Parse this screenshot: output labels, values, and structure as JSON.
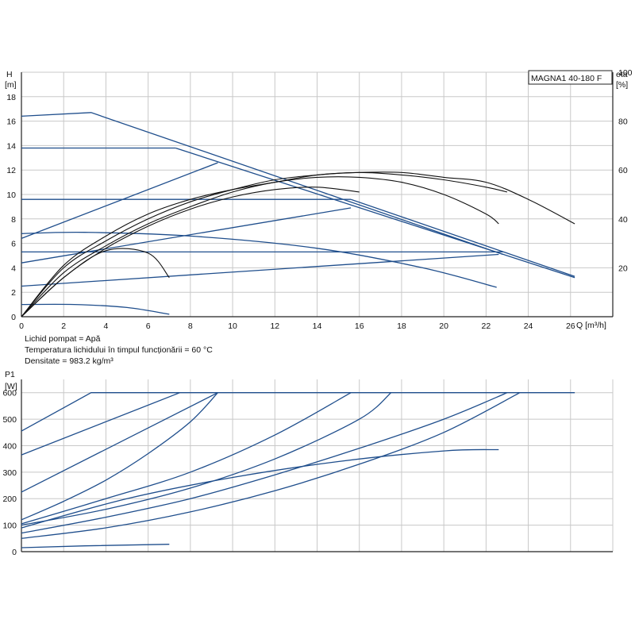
{
  "chart_data": [
    {
      "type": "line",
      "title": "MAGNA1 40-180 F",
      "ylabel_top": "H",
      "ylabel_unit": "[m]",
      "y2label_top": "eta",
      "y2label_unit": "[%]",
      "xlabel": "Q [m³/h]",
      "xlim": [
        0,
        28
      ],
      "ylim": [
        0,
        20
      ],
      "y2lim": [
        0,
        100
      ],
      "x_ticks": [
        0,
        2,
        4,
        6,
        8,
        10,
        12,
        14,
        16,
        18,
        20,
        22,
        24,
        26
      ],
      "y_ticks": [
        0,
        2,
        4,
        6,
        8,
        10,
        12,
        14,
        16,
        18
      ],
      "y2_ticks": [
        20,
        40,
        60,
        80,
        100
      ],
      "grid": true,
      "head_curves": [
        {
          "x": [
            0,
            3.3,
            22.8
          ],
          "y": [
            16.4,
            16.7,
            5.1
          ]
        },
        {
          "x": [
            0,
            7.3
          ],
          "y": [
            13.8,
            13.8
          ]
        },
        {
          "x": [
            0,
            15.6
          ],
          "y": [
            9.6,
            9.6
          ]
        },
        {
          "x": [
            0,
            22.8
          ],
          "y": [
            5.3,
            5.3
          ]
        },
        {
          "x": [
            0,
            3.0,
            8.0,
            14.0,
            19.0,
            22.5
          ],
          "y": [
            6.8,
            6.9,
            6.6,
            5.6,
            4.0,
            2.4
          ]
        },
        {
          "x": [
            0,
            2.5,
            5.0,
            7.0
          ],
          "y": [
            1.0,
            1.0,
            0.75,
            0.2
          ]
        },
        {
          "x": [
            0,
            9.3
          ],
          "y": [
            6.4,
            12.6
          ]
        },
        {
          "x": [
            0,
            15.6
          ],
          "y": [
            4.4,
            8.9
          ]
        },
        {
          "x": [
            0,
            22.6
          ],
          "y": [
            2.5,
            5.1
          ]
        },
        {
          "x": [
            7.3,
            26.2
          ],
          "y": [
            13.8,
            3.2
          ]
        },
        {
          "x": [
            15.6,
            26.2
          ],
          "y": [
            9.6,
            3.3
          ]
        }
      ],
      "efficiency_curves": [
        {
          "x": [
            0,
            2,
            4,
            6,
            8,
            10,
            12,
            14,
            16,
            18,
            20,
            22,
            24,
            26.2
          ],
          "y": [
            0,
            21,
            33,
            42,
            48,
            52,
            55,
            58,
            59,
            59,
            57,
            55,
            48,
            38
          ]
        },
        {
          "x": [
            0,
            2,
            4,
            6,
            8,
            10,
            12,
            14,
            16,
            18,
            20,
            22,
            23
          ],
          "y": [
            0,
            20,
            31,
            40,
            47,
            52,
            56,
            58,
            59,
            58,
            56,
            53,
            51
          ]
        },
        {
          "x": [
            0,
            2,
            4,
            6,
            8,
            10,
            12,
            14,
            16,
            18,
            20,
            22,
            22.6
          ],
          "y": [
            0,
            18,
            29,
            38,
            45,
            51,
            55,
            57,
            57,
            55,
            50,
            42,
            38
          ]
        },
        {
          "x": [
            0,
            2,
            4,
            6,
            8,
            10,
            12,
            14,
            16
          ],
          "y": [
            0,
            16,
            28,
            37,
            44,
            49,
            52,
            53,
            51
          ]
        },
        {
          "x": [
            0,
            2,
            4,
            6,
            7.0
          ],
          "y": [
            0,
            16,
            27,
            26,
            16
          ]
        }
      ]
    },
    {
      "type": "line",
      "ylabel_top": "P1",
      "ylabel_unit": "[W]",
      "xlim": [
        0,
        28
      ],
      "ylim": [
        0,
        650
      ],
      "y_ticks": [
        0,
        100,
        200,
        300,
        400,
        500,
        600
      ],
      "grid": true,
      "power_curves": [
        {
          "x": [
            0,
            3.3,
            26.2
          ],
          "y": [
            455,
            600,
            600
          ]
        },
        {
          "x": [
            0,
            7.5
          ],
          "y": [
            365,
            600
          ]
        },
        {
          "x": [
            0,
            9.3
          ],
          "y": [
            225,
            600
          ]
        },
        {
          "x": [
            0,
            2,
            4,
            6,
            8,
            9.3
          ],
          "y": [
            120,
            190,
            270,
            370,
            490,
            600
          ]
        },
        {
          "x": [
            0,
            4,
            8,
            12,
            15.6
          ],
          "y": [
            105,
            200,
            300,
            440,
            600
          ]
        },
        {
          "x": [
            0,
            4,
            8,
            12,
            16,
            17.5
          ],
          "y": [
            100,
            160,
            240,
            350,
            500,
            600
          ]
        },
        {
          "x": [
            0,
            5,
            10,
            15,
            20,
            22.6
          ],
          "y": [
            90,
            200,
            280,
            340,
            380,
            385
          ]
        },
        {
          "x": [
            0,
            4,
            8,
            12,
            16,
            20,
            23
          ],
          "y": [
            70,
            130,
            200,
            290,
            390,
            500,
            600
          ]
        },
        {
          "x": [
            0,
            4,
            8,
            12,
            16,
            20,
            23.6
          ],
          "y": [
            50,
            90,
            150,
            230,
            330,
            450,
            600
          ]
        },
        {
          "x": [
            0,
            3,
            7.0
          ],
          "y": [
            15,
            22,
            28
          ]
        }
      ]
    }
  ],
  "notes": [
    "Lichid pompat = Apă",
    "Temperatura lichidului în timpul funcționării = 60 °C",
    "Densitate = 983.2 kg/m³"
  ]
}
